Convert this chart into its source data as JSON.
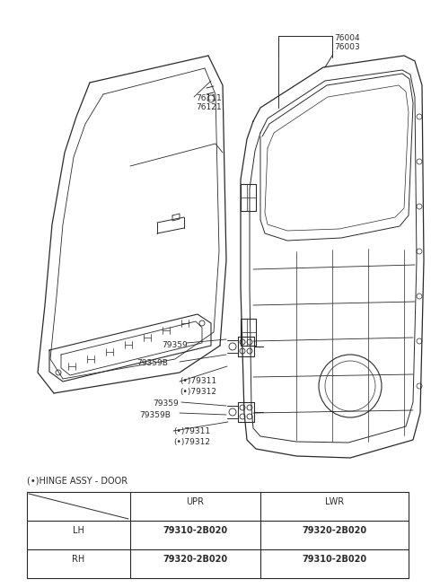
{
  "bg_color": "#ffffff",
  "line_color": "#2a2a2a",
  "title": "(*) HINGE ASSY - DOOR",
  "table_headers": [
    "",
    "UPR",
    "LWR"
  ],
  "table_rows": [
    [
      "LH",
      "79310-2B020",
      "79320-2B020"
    ],
    [
      "RH",
      "79320-2B020",
      "79310-2B020"
    ]
  ]
}
